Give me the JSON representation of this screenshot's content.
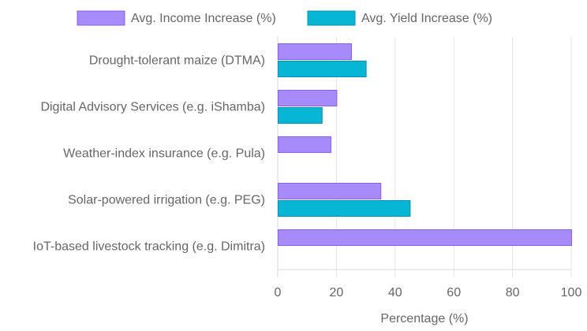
{
  "chart_data": {
    "type": "bar",
    "orientation": "horizontal",
    "categories": [
      "Drought-tolerant maize (DTMA)",
      "Digital Advisory Services (e.g. iShamba)",
      "Weather-index insurance (e.g. Pula)",
      "Solar-powered irrigation (e.g. PEG)",
      "IoT-based livestock tracking (e.g. Dimitra)"
    ],
    "series": [
      {
        "name": "Avg. Income Increase (%)",
        "values": [
          25,
          20,
          18,
          35,
          100
        ],
        "fill": "#a78bfa",
        "stroke": "#8b5cf6"
      },
      {
        "name": "Avg. Yield Increase (%)",
        "values": [
          30,
          15,
          0,
          45,
          0
        ],
        "fill": "#06b6d4",
        "stroke": "#0891b2"
      }
    ],
    "xlabel": "Percentage (%)",
    "ylabel": "",
    "xlim": [
      0,
      100
    ],
    "xticks": [
      0,
      20,
      40,
      60,
      80,
      100
    ],
    "grid": true,
    "legend_position": "top"
  }
}
